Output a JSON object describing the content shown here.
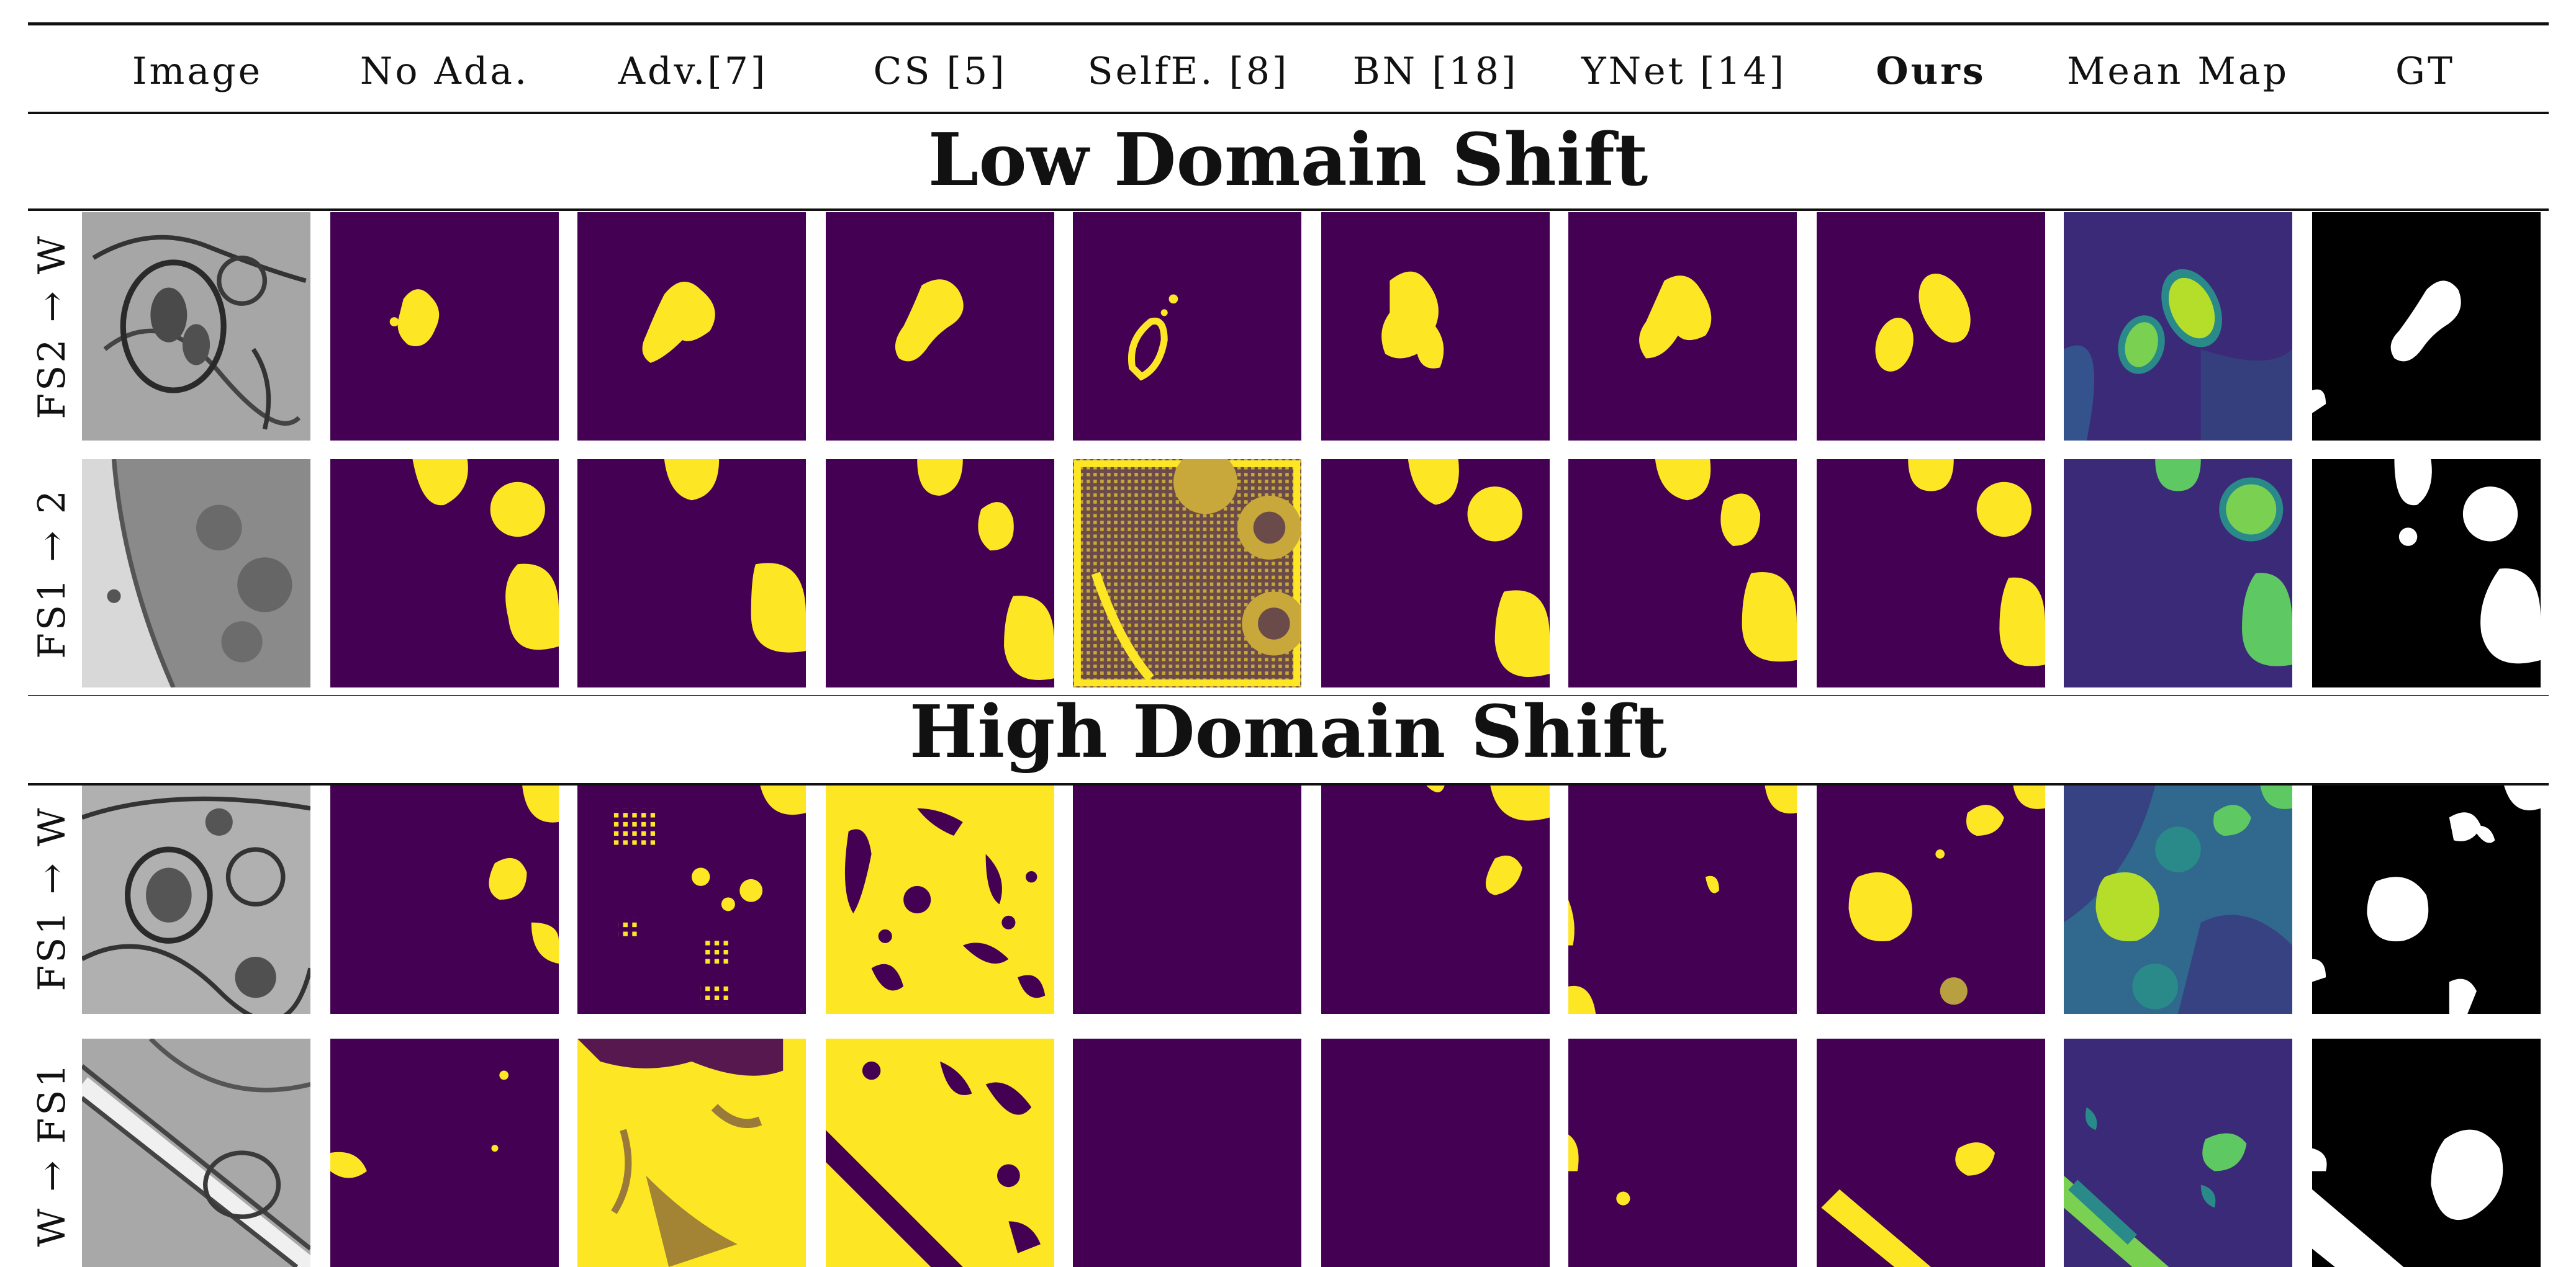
{
  "columns": [
    "Image",
    "No Ada.",
    "Adv.[7]",
    "CS [5]",
    "SelfE. [8]",
    "BN [18]",
    "YNet [14]",
    "Ours",
    "Mean Map",
    "GT"
  ],
  "bold_column": "Ours",
  "sections": [
    {
      "title": "Low Domain Shift",
      "rows": [
        {
          "label": "FS2 → W"
        },
        {
          "label": "FS1 → 2"
        }
      ]
    },
    {
      "title": "High Domain Shift",
      "rows": [
        {
          "label": "FS1 → W"
        },
        {
          "label": "W → FS1"
        }
      ]
    }
  ],
  "colors": {
    "background_mask": "#440154",
    "foreground_mask": "#fde725",
    "mean_map_low": "#3b2a78",
    "mean_map_mid": "#2a8a8a",
    "mean_map_high": "#b5de2b",
    "gt_background": "#000000",
    "gt_foreground": "#ffffff",
    "em_gray": "#9a9a9a"
  },
  "icons": [
    "arrow-right-icon"
  ]
}
